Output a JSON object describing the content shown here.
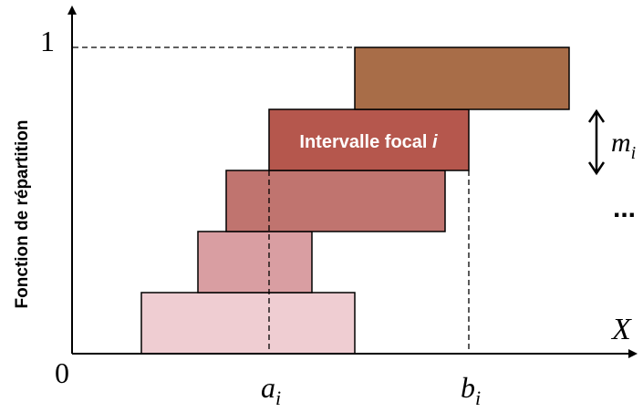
{
  "axes": {
    "y_label": "Fonction de répartition",
    "y_tick_top": "1",
    "origin_label": "0",
    "x_label": "X",
    "a_label": {
      "base": "a",
      "sub": "i"
    },
    "b_label": {
      "base": "b",
      "sub": "i"
    }
  },
  "intervals": [
    {
      "level": 1,
      "color": "#efcdd2"
    },
    {
      "level": 2,
      "color": "#d99ea2"
    },
    {
      "level": 3,
      "color": "#c0746f"
    },
    {
      "level": 4,
      "color": "#b5574d",
      "label": {
        "text": "Intervalle focal ",
        "var": "i"
      }
    },
    {
      "level": 5,
      "color": "#a86d48"
    }
  ],
  "mass_label": {
    "base": "m",
    "sub": "i"
  },
  "ellipsis": "..."
}
